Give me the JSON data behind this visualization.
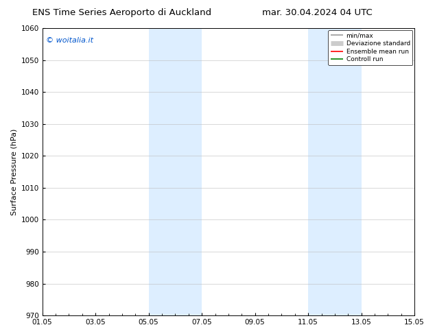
{
  "title_left": "ENS Time Series Aeroporto di Auckland",
  "title_right": "mar. 30.04.2024 04 UTC",
  "ylabel": "Surface Pressure (hPa)",
  "ylim": [
    970,
    1060
  ],
  "yticks": [
    970,
    980,
    990,
    1000,
    1010,
    1020,
    1030,
    1040,
    1050,
    1060
  ],
  "xlim_days": [
    0,
    14
  ],
  "xtick_labels": [
    "01.05",
    "03.05",
    "05.05",
    "07.05",
    "09.05",
    "11.05",
    "13.05",
    "15.05"
  ],
  "xtick_positions": [
    0,
    2,
    4,
    6,
    8,
    10,
    12,
    14
  ],
  "shaded_bands": [
    {
      "xstart": 4,
      "xend": 6
    },
    {
      "xstart": 10,
      "xend": 12
    }
  ],
  "shaded_color": "#ddeeff",
  "background_color": "#ffffff",
  "watermark_text": "© woitalia.it",
  "watermark_color": "#0055cc",
  "legend_items": [
    {
      "label": "min/max",
      "color": "#999999",
      "linewidth": 1.2,
      "linestyle": "-"
    },
    {
      "label": "Deviazione standard",
      "color": "#cccccc",
      "linewidth": 5,
      "linestyle": "-"
    },
    {
      "label": "Ensemble mean run",
      "color": "#ff0000",
      "linewidth": 1.2,
      "linestyle": "-"
    },
    {
      "label": "Controll run",
      "color": "#008000",
      "linewidth": 1.2,
      "linestyle": "-"
    }
  ],
  "grid_color": "#bbbbbb",
  "title_fontsize": 9.5,
  "tick_fontsize": 7.5,
  "ylabel_fontsize": 8,
  "watermark_fontsize": 8,
  "legend_fontsize": 6.5
}
